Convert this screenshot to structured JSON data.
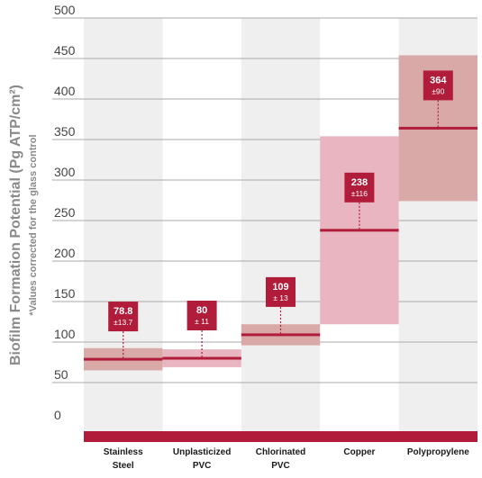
{
  "chart_data": {
    "type": "bar",
    "ylabel": "Biofilm Formation Potential (Pg ATP/cm²)",
    "ylabel_note": "*Values corrected for the glass control",
    "ylim": [
      0,
      500
    ],
    "yticks": [
      0,
      50,
      100,
      150,
      200,
      250,
      300,
      350,
      400,
      450,
      500
    ],
    "grid": true,
    "categories": [
      {
        "line1": "Stainless",
        "line2": "Steel"
      },
      {
        "line1": "Unplasticized",
        "line2": "PVC"
      },
      {
        "line1": "Chlorinated",
        "line2": "PVC"
      },
      {
        "line1": "Copper",
        "line2": ""
      },
      {
        "line1": "Polypropylene",
        "line2": ""
      }
    ],
    "series": [
      {
        "values": [
          78.8,
          80,
          109,
          238,
          364
        ],
        "errors": [
          13.7,
          11,
          13,
          116,
          90
        ],
        "value_labels": [
          "78.8",
          "80",
          "109",
          "238",
          "364"
        ],
        "error_labels": [
          "±13.7",
          "± 11",
          "± 13",
          "±116",
          "±90"
        ]
      }
    ],
    "colors": {
      "accent": "#b01c3a",
      "band_shade": "#d9a9a7",
      "band_pink": "#e8b5c0",
      "column_alt": "#efefef",
      "baseline": "#b01c3a"
    }
  }
}
